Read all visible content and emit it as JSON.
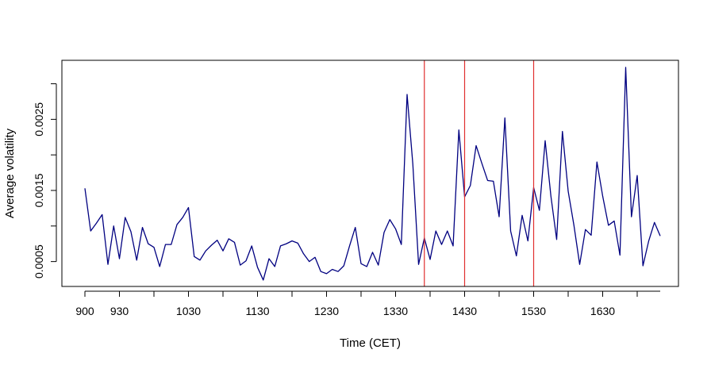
{
  "chart_data": {
    "type": "line",
    "title": "",
    "xlabel": "Time (CET)",
    "ylabel": "Average volatility",
    "x_tick_labels": [
      "900",
      "930",
      "1030",
      "1130",
      "1230",
      "1330",
      "1430",
      "1530",
      "1630"
    ],
    "y_tick_labels": [
      "0.0005",
      "0.0015",
      "0.0025"
    ],
    "y_ticks": [
      0.0005,
      0.0015,
      0.0025
    ],
    "ylim": [
      0.00015,
      0.00333
    ],
    "x_interval_minutes": 5,
    "x_start": "900",
    "vertical_lines_at": [
      "1355",
      "1430",
      "1530"
    ],
    "grid": false,
    "legend": "none",
    "colors": {
      "series": "#000080",
      "vline": "#e03030",
      "frame": "#000000"
    },
    "series": [
      {
        "values": [
          0.00153,
          0.00093,
          0.00104,
          0.00116,
          0.00046,
          0.001,
          0.00054,
          0.00112,
          0.00092,
          0.00052,
          0.00098,
          0.00075,
          0.0007,
          0.00043,
          0.00074,
          0.00074,
          0.00102,
          0.00112,
          0.00126,
          0.00057,
          0.00052,
          0.00065,
          0.00073,
          0.0008,
          0.00065,
          0.00082,
          0.00077,
          0.00045,
          0.00051,
          0.00072,
          0.00042,
          0.00024,
          0.00054,
          0.00043,
          0.00072,
          0.00075,
          0.00079,
          0.00076,
          0.00061,
          0.0005,
          0.00056,
          0.00036,
          0.00033,
          0.00039,
          0.00036,
          0.00044,
          0.00072,
          0.00098,
          0.00047,
          0.00043,
          0.00063,
          0.00045,
          0.00091,
          0.00109,
          0.00096,
          0.00074,
          0.00285,
          0.00187,
          0.00046,
          0.00083,
          0.00053,
          0.00093,
          0.00074,
          0.00093,
          0.00072,
          0.00235,
          0.00141,
          0.00157,
          0.00213,
          0.00188,
          0.00164,
          0.00163,
          0.00113,
          0.00252,
          0.00093,
          0.00058,
          0.00115,
          0.00079,
          0.00154,
          0.00122,
          0.0022,
          0.00142,
          0.00081,
          0.00233,
          0.00149,
          0.00101,
          0.00046,
          0.00095,
          0.00087,
          0.0019,
          0.00142,
          0.00101,
          0.00107,
          0.00059,
          0.00323,
          0.00113,
          0.00171,
          0.00044,
          0.00079,
          0.00105,
          0.00086
        ]
      }
    ]
  }
}
